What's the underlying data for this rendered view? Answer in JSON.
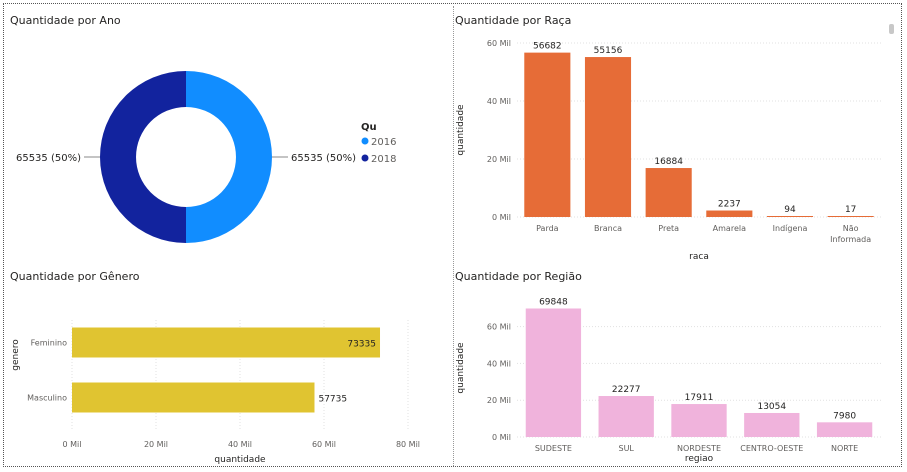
{
  "chart_data": [
    {
      "id": "ano",
      "type": "pie",
      "title": "Quantidade por Ano",
      "categories": [
        "2016",
        "2018"
      ],
      "values": [
        65535,
        65535
      ],
      "data_labels": [
        "65535 (50%)",
        "65535 (50%)"
      ],
      "legend": {
        "title": "Qu",
        "placement": "right",
        "items": [
          "2016",
          "2018"
        ]
      },
      "colors": [
        "#118dff",
        "#12239e"
      ]
    },
    {
      "id": "raca",
      "type": "bar",
      "title": "Quantidade por Raça",
      "categories": [
        "Parda",
        "Branca",
        "Preta",
        "Amarela",
        "Indígena",
        "Não Informada"
      ],
      "values": [
        56682,
        55156,
        16884,
        2237,
        94,
        17
      ],
      "xlabel": "raca",
      "ylabel": "quantidade",
      "ylim": [
        0,
        60000
      ],
      "yticks": [
        "0 Mil",
        "20 Mil",
        "40 Mil",
        "60 Mil"
      ],
      "grid": true,
      "color": "#e66c37"
    },
    {
      "id": "genero",
      "type": "bar",
      "orientation": "horizontal",
      "title": "Quantidade por Gênero",
      "categories": [
        "Feminino",
        "Masculino"
      ],
      "values": [
        73335,
        57735
      ],
      "xlabel": "quantidade",
      "ylabel": "genero",
      "xlim": [
        0,
        80000
      ],
      "xticks": [
        "0 Mil",
        "20 Mil",
        "40 Mil",
        "60 Mil",
        "80 Mil"
      ],
      "grid": true,
      "color": "#e0c431"
    },
    {
      "id": "regiao",
      "type": "bar",
      "title": "Quantidade por Região",
      "categories": [
        "SUDESTE",
        "SUL",
        "NORDESTE",
        "CENTRO-OESTE",
        "NORTE"
      ],
      "values": [
        69848,
        22277,
        17911,
        13054,
        7980
      ],
      "xlabel": "regiao",
      "ylabel": "quantidade",
      "ylim": [
        0,
        75000
      ],
      "yticks": [
        "0 Mil",
        "20 Mil",
        "40 Mil",
        "60 Mil"
      ],
      "grid": true,
      "color": "#f0b3dc"
    }
  ]
}
